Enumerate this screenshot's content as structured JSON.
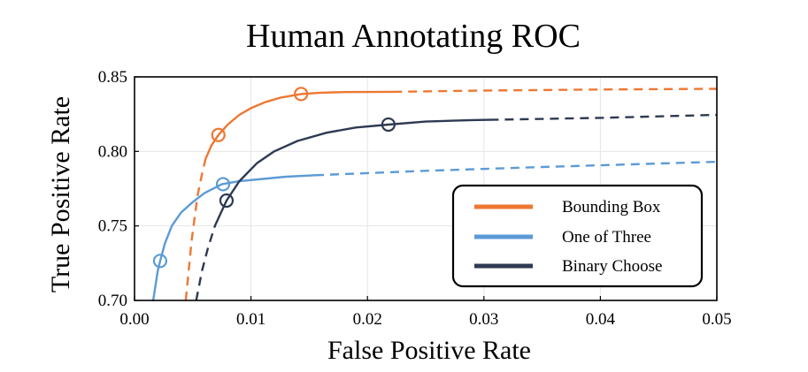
{
  "chart_data": {
    "type": "line",
    "title": "Human Annotating ROC",
    "xlabel": "False Positive Rate",
    "ylabel": "True Positive Rate",
    "xlim": [
      0.0,
      0.05
    ],
    "ylim": [
      0.7,
      0.85
    ],
    "xticks": [
      0.0,
      0.01,
      0.02,
      0.03,
      0.04,
      0.05
    ],
    "xtick_labels": [
      "0.00",
      "0.01",
      "0.02",
      "0.03",
      "0.04",
      "0.05"
    ],
    "yticks": [
      0.7,
      0.75,
      0.8,
      0.85
    ],
    "ytick_labels": [
      "0.70",
      "0.75",
      "0.80",
      "0.85"
    ],
    "grid": true,
    "legend_position": "lower-right",
    "series": [
      {
        "name": "Bounding Box",
        "color": "#EE7733",
        "solid": [
          [
            0.0061,
            0.795
          ],
          [
            0.0066,
            0.804
          ],
          [
            0.0072,
            0.811
          ],
          [
            0.008,
            0.818
          ],
          [
            0.009,
            0.8245
          ],
          [
            0.01,
            0.829
          ],
          [
            0.0112,
            0.833
          ],
          [
            0.0125,
            0.836
          ],
          [
            0.0143,
            0.8385
          ],
          [
            0.016,
            0.8394
          ],
          [
            0.018,
            0.8398
          ],
          [
            0.0222,
            0.84
          ]
        ],
        "dashed": [
          [
            0.0044,
            0.7
          ],
          [
            0.0049,
            0.74
          ],
          [
            0.0054,
            0.77
          ],
          [
            0.0058,
            0.785
          ],
          [
            0.0061,
            0.795
          ]
        ],
        "dashed_tail": [
          [
            0.0222,
            0.84
          ],
          [
            0.03,
            0.8408
          ],
          [
            0.04,
            0.8415
          ],
          [
            0.05,
            0.842
          ]
        ],
        "markers": [
          [
            0.0072,
            0.811
          ],
          [
            0.0143,
            0.8385
          ]
        ]
      },
      {
        "name": "One of Three",
        "color": "#5B9BD5",
        "solid": [
          [
            0.0016,
            0.7
          ],
          [
            0.0018,
            0.71
          ],
          [
            0.002,
            0.72
          ],
          [
            0.0022,
            0.7265
          ],
          [
            0.0026,
            0.738
          ],
          [
            0.0032,
            0.75
          ],
          [
            0.004,
            0.759
          ],
          [
            0.005,
            0.766
          ],
          [
            0.006,
            0.772
          ],
          [
            0.0075,
            0.778
          ],
          [
            0.009,
            0.78
          ],
          [
            0.011,
            0.7815
          ],
          [
            0.013,
            0.783
          ],
          [
            0.0155,
            0.784
          ]
        ],
        "dashed": [],
        "dashed_tail": [
          [
            0.0155,
            0.784
          ],
          [
            0.025,
            0.787
          ],
          [
            0.035,
            0.7895
          ],
          [
            0.05,
            0.793
          ]
        ],
        "markers": [
          [
            0.0022,
            0.7265
          ],
          [
            0.0076,
            0.778
          ]
        ]
      },
      {
        "name": "Binary Choose",
        "color": "#2D3A52",
        "solid": [
          [
            0.0069,
            0.75
          ],
          [
            0.0079,
            0.767
          ],
          [
            0.009,
            0.78
          ],
          [
            0.0105,
            0.792
          ],
          [
            0.012,
            0.8
          ],
          [
            0.014,
            0.807
          ],
          [
            0.0165,
            0.8125
          ],
          [
            0.019,
            0.816
          ],
          [
            0.0218,
            0.818
          ],
          [
            0.025,
            0.82
          ],
          [
            0.029,
            0.821
          ],
          [
            0.0305,
            0.8212
          ]
        ],
        "dashed": [
          [
            0.0053,
            0.7
          ],
          [
            0.0058,
            0.72
          ],
          [
            0.0063,
            0.735
          ],
          [
            0.0069,
            0.75
          ]
        ],
        "dashed_tail": [
          [
            0.0305,
            0.8212
          ],
          [
            0.04,
            0.8225
          ],
          [
            0.05,
            0.8245
          ]
        ],
        "markers": [
          [
            0.0079,
            0.767
          ],
          [
            0.0218,
            0.818
          ]
        ]
      }
    ]
  }
}
